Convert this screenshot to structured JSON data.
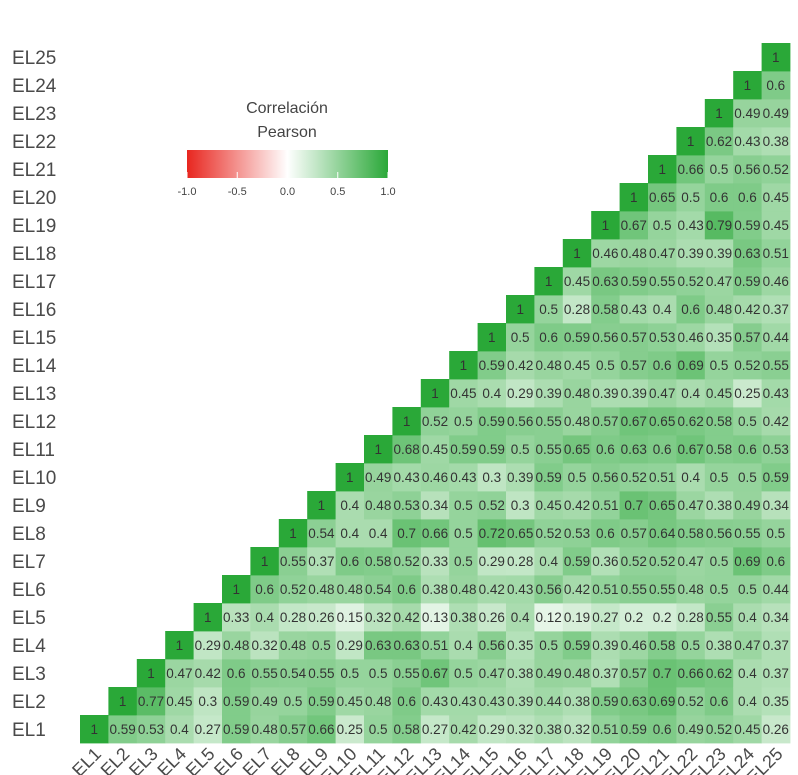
{
  "chart_data": {
    "type": "heatmap",
    "variables": [
      "EL1",
      "EL2",
      "EL3",
      "EL4",
      "EL5",
      "EL6",
      "EL7",
      "EL8",
      "EL9",
      "EL10",
      "EL11",
      "EL12",
      "EL13",
      "EL14",
      "EL15",
      "EL16",
      "EL17",
      "EL18",
      "EL19",
      "EL20",
      "EL21",
      "EL22",
      "EL23",
      "EL24",
      "EL25"
    ],
    "values": [
      [
        1
      ],
      [
        0.59,
        1
      ],
      [
        0.53,
        0.77,
        1
      ],
      [
        0.4,
        0.45,
        0.47,
        1
      ],
      [
        0.27,
        0.3,
        0.42,
        0.29,
        1
      ],
      [
        0.59,
        0.59,
        0.6,
        0.48,
        0.33,
        1
      ],
      [
        0.48,
        0.49,
        0.55,
        0.32,
        0.4,
        0.6,
        1
      ],
      [
        0.57,
        0.5,
        0.54,
        0.48,
        0.28,
        0.52,
        0.55,
        1
      ],
      [
        0.66,
        0.59,
        0.55,
        0.5,
        0.26,
        0.48,
        0.37,
        0.54,
        1
      ],
      [
        0.25,
        0.45,
        0.5,
        0.29,
        0.15,
        0.48,
        0.6,
        0.4,
        0.4,
        1
      ],
      [
        0.5,
        0.48,
        0.5,
        0.63,
        0.32,
        0.54,
        0.58,
        0.4,
        0.48,
        0.49,
        1
      ],
      [
        0.58,
        0.6,
        0.55,
        0.63,
        0.42,
        0.6,
        0.52,
        0.7,
        0.53,
        0.43,
        0.68,
        1
      ],
      [
        0.27,
        0.43,
        0.67,
        0.51,
        0.13,
        0.38,
        0.33,
        0.66,
        0.34,
        0.46,
        0.45,
        0.52,
        1
      ],
      [
        0.42,
        0.43,
        0.5,
        0.4,
        0.38,
        0.48,
        0.5,
        0.5,
        0.5,
        0.43,
        0.59,
        0.5,
        0.45,
        1
      ],
      [
        0.29,
        0.43,
        0.47,
        0.56,
        0.26,
        0.42,
        0.29,
        0.72,
        0.52,
        0.3,
        0.59,
        0.59,
        0.4,
        0.59,
        1
      ],
      [
        0.32,
        0.39,
        0.38,
        0.35,
        0.4,
        0.43,
        0.28,
        0.65,
        0.3,
        0.39,
        0.5,
        0.56,
        0.29,
        0.42,
        0.5,
        1
      ],
      [
        0.38,
        0.44,
        0.49,
        0.5,
        0.12,
        0.56,
        0.4,
        0.52,
        0.45,
        0.59,
        0.55,
        0.55,
        0.39,
        0.48,
        0.6,
        0.5,
        1
      ],
      [
        0.32,
        0.38,
        0.48,
        0.59,
        0.19,
        0.42,
        0.59,
        0.53,
        0.42,
        0.5,
        0.65,
        0.48,
        0.48,
        0.45,
        0.59,
        0.28,
        0.45,
        1
      ],
      [
        0.51,
        0.59,
        0.37,
        0.39,
        0.27,
        0.51,
        0.36,
        0.6,
        0.51,
        0.56,
        0.6,
        0.57,
        0.39,
        0.5,
        0.56,
        0.58,
        0.63,
        0.46,
        1
      ],
      [
        0.59,
        0.63,
        0.57,
        0.46,
        0.2,
        0.55,
        0.52,
        0.57,
        0.7,
        0.52,
        0.63,
        0.67,
        0.39,
        0.57,
        0.57,
        0.43,
        0.59,
        0.48,
        0.67,
        1
      ],
      [
        0.6,
        0.69,
        0.7,
        0.58,
        0.2,
        0.55,
        0.52,
        0.64,
        0.65,
        0.51,
        0.6,
        0.65,
        0.47,
        0.6,
        0.53,
        0.4,
        0.55,
        0.47,
        0.5,
        0.65,
        1
      ],
      [
        0.49,
        0.52,
        0.66,
        0.5,
        0.28,
        0.48,
        0.47,
        0.58,
        0.47,
        0.4,
        0.67,
        0.62,
        0.4,
        0.69,
        0.46,
        0.6,
        0.52,
        0.39,
        0.43,
        0.5,
        0.66,
        1
      ],
      [
        0.52,
        0.6,
        0.62,
        0.38,
        0.55,
        0.5,
        0.5,
        0.56,
        0.38,
        0.5,
        0.58,
        0.58,
        0.45,
        0.5,
        0.35,
        0.48,
        0.47,
        0.39,
        0.79,
        0.6,
        0.5,
        0.62,
        1
      ],
      [
        0.45,
        0.4,
        0.4,
        0.47,
        0.4,
        0.5,
        0.69,
        0.55,
        0.49,
        0.5,
        0.6,
        0.5,
        0.25,
        0.52,
        0.57,
        0.42,
        0.59,
        0.63,
        0.59,
        0.6,
        0.56,
        0.43,
        0.49,
        1
      ],
      [
        0.26,
        0.35,
        0.37,
        0.37,
        0.34,
        0.44,
        0.6,
        0.5,
        0.34,
        0.59,
        0.53,
        0.42,
        0.43,
        0.55,
        0.44,
        0.37,
        0.46,
        0.51,
        0.45,
        0.45,
        0.52,
        0.38,
        0.49,
        0.6,
        1
      ]
    ],
    "cell_labels": [
      [
        "1"
      ],
      [
        "0.59",
        "1"
      ],
      [
        "0.53",
        "0.77",
        "1"
      ],
      [
        "0.4",
        "0.45",
        "0.47",
        "1"
      ],
      [
        "0.27",
        "0.3",
        "0.42",
        "0.29",
        "1"
      ],
      [
        "0.59",
        "0.59",
        "0.6",
        "0.48",
        "0.33",
        "1"
      ],
      [
        "0.48",
        "0.49",
        "0.55",
        "0.32",
        "0.4",
        "0.6",
        "1"
      ],
      [
        "0.57",
        "0.5",
        "0.54",
        "0.48",
        "0.28",
        "0.52",
        "0.55",
        "1"
      ],
      [
        "0.66",
        "0.59",
        "0.55",
        "0.5",
        "0.26",
        "0.48",
        "0.37",
        "0.54",
        "1"
      ],
      [
        "0.25",
        "0.45",
        "0.5",
        "0.29",
        "0.15",
        "0.48",
        "0.6",
        "0.4",
        "0.4",
        "1"
      ],
      [
        "0.5",
        "0.48",
        "0.5",
        "0.63",
        "0.32",
        "0.54",
        "0.58",
        "0.4",
        "0.48",
        "0.49",
        "1"
      ],
      [
        "0.58",
        "0.6",
        "0.55",
        "0.63",
        "0.42",
        "0.6",
        "0.52",
        "0.7",
        "0.53",
        "0.43",
        "0.68",
        "1"
      ],
      [
        "0.27",
        "0.43",
        "0.67",
        "0.51",
        "0.13",
        "0.38",
        "0.33",
        "0.66",
        "0.34",
        "0.46",
        "0.45",
        "0.52",
        "1"
      ],
      [
        "0.42",
        "0.43",
        "0.5",
        "0.4",
        "0.38",
        "0.48",
        "0.5",
        "0.5",
        "0.5",
        "0.43",
        "0.59",
        "0.5",
        "0.45",
        "1"
      ],
      [
        "0.29",
        "0.43",
        "0.47",
        "0.56",
        "0.26",
        "0.42",
        "0.29",
        "0.72",
        "0.52",
        "0.3",
        "0.59",
        "0.59",
        "0.4",
        "0.59",
        "1"
      ],
      [
        "0.32",
        "0.39",
        "0.38",
        "0.35",
        "0.4",
        "0.43",
        "0.28",
        "0.65",
        "0.3",
        "0.39",
        "0.5",
        "0.56",
        "0.29",
        "0.42",
        "0.5",
        "1"
      ],
      [
        "0.38",
        "0.44",
        "0.49",
        "0.5",
        "0.12",
        "0.56",
        "0.4",
        "0.52",
        "0.45",
        "0.59",
        "0.55",
        "0.55",
        "0.39",
        "0.48",
        "0.6",
        "0.5",
        "1"
      ],
      [
        "0.32",
        "0.38",
        "0.48",
        "0.59",
        "0.19",
        "0.42",
        "0.59",
        "0.53",
        "0.42",
        "0.5",
        "0.65",
        "0.48",
        "0.48",
        "0.45",
        "0.59",
        "0.28",
        "0.45",
        "1"
      ],
      [
        "0.51",
        "0.59",
        "0.37",
        "0.39",
        "0.27",
        "0.51",
        "0.36",
        "0.6",
        "0.51",
        "0.56",
        "0.6",
        "0.57",
        "0.39",
        "0.5",
        "0.56",
        "0.58",
        "0.63",
        "0.46",
        "1"
      ],
      [
        "0.59",
        "0.63",
        "0.57",
        "0.46",
        "0.2",
        "0.55",
        "0.52",
        "0.57",
        "0.7",
        "0.52",
        "0.63",
        "0.67",
        "0.39",
        "0.57",
        "0.57",
        "0.43",
        "0.59",
        "0.48",
        "0.67",
        "1"
      ],
      [
        "0.6",
        "0.69",
        "0.7",
        "0.58",
        "0.2",
        "0.55",
        "0.52",
        "0.64",
        "0.65",
        "0.51",
        "0.6",
        "0.65",
        "0.47",
        "0.6",
        "0.53",
        "0.4",
        "0.55",
        "0.47",
        "0.5",
        "0.65",
        "1"
      ],
      [
        "0.49",
        "0.52",
        "0.66",
        "0.5",
        "0.28",
        "0.48",
        "0.47",
        "0.58",
        "0.47",
        "0.4",
        "0.67",
        "0.62",
        "0.4",
        "0.69",
        "0.46",
        "0.6",
        "0.52",
        "0.39",
        "0.43",
        "0.5",
        "0.66",
        "1"
      ],
      [
        "0.52",
        "0.6",
        "0.62",
        "0.38",
        "0.55",
        "0.5",
        "0.5",
        "0.56",
        "0.38",
        "0.5",
        "0.58",
        "0.58",
        "0.45",
        "0.5",
        "0.35",
        "0.48",
        "0.47",
        "0.39",
        "0.79",
        "0.6",
        "0.5",
        "0.62",
        "1"
      ],
      [
        "0.45",
        "0.4",
        "0.4",
        "0.47",
        "0.4",
        "0.5",
        "0.69",
        "0.55",
        "0.49",
        "0.5",
        "0.6",
        "0.5",
        "0.25",
        "0.52",
        "0.57",
        "0.42",
        "0.59",
        "0.63",
        "0.59",
        "0.6",
        "0.56",
        "0.43",
        "0.49",
        "1"
      ],
      [
        "0.26",
        "0.35",
        "0.37",
        "0.37",
        "0.34",
        "0.44",
        "0.6",
        "0.5",
        "0.34",
        "0.59",
        "0.53",
        "0.42",
        "0.43",
        "0.55",
        "0.44",
        "0.37",
        "0.46",
        "0.51",
        "0.45",
        "0.45",
        "0.52",
        "0.38",
        "0.49",
        "0.6",
        "1"
      ]
    ],
    "legend": {
      "title_line1": "Correlación",
      "title_line2": "Pearson",
      "ticks": [
        "-1.0",
        "-0.5",
        "0.0",
        "0.5",
        "1.0"
      ],
      "range": [
        -1,
        1
      ],
      "placement": "top-left"
    },
    "colors": {
      "negative": "#e8261f",
      "zero": "#ffffff",
      "positive": "#2aa838"
    },
    "grid": false
  }
}
